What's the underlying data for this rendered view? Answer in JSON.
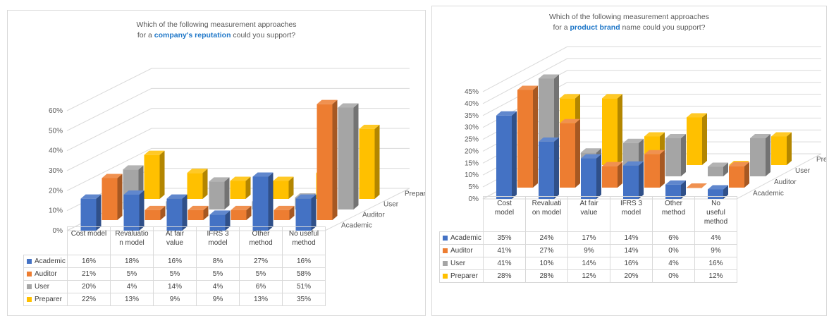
{
  "charts": [
    {
      "id": "left",
      "title_pre": "for a ",
      "title_bold": "company's reputation",
      "title_post": " could you support?",
      "title_line1": "Which of the following measurement approaches",
      "yticks": [
        "0%",
        "10%",
        "20%",
        "30%",
        "40%",
        "50%",
        "60%"
      ],
      "categories": [
        "Cost model",
        "Revaluation model",
        "At fair value",
        "IFRS 3 model",
        "Other method",
        "No useful method"
      ],
      "category_lines": [
        [
          "Cost model"
        ],
        [
          "Revaluatio",
          "n model"
        ],
        [
          "At fair",
          "value"
        ],
        [
          "IFRS 3",
          "model"
        ],
        [
          "Other",
          "method"
        ],
        [
          "No useful",
          "method"
        ]
      ],
      "series": [
        {
          "name": "Academic",
          "color": "#4472c4",
          "values": [
            16,
            18,
            16,
            8,
            27,
            16
          ]
        },
        {
          "name": "Auditor",
          "color": "#ed7d31",
          "values": [
            21,
            5,
            5,
            5,
            5,
            58
          ]
        },
        {
          "name": "User",
          "color": "#a5a5a5",
          "values": [
            20,
            4,
            14,
            4,
            6,
            51
          ]
        },
        {
          "name": "Preparer",
          "color": "#ffc000",
          "values": [
            22,
            13,
            9,
            9,
            13,
            35
          ]
        }
      ],
      "cells": [
        [
          "16%",
          "18%",
          "16%",
          "8%",
          "27%",
          "16%"
        ],
        [
          "21%",
          "5%",
          "5%",
          "5%",
          "5%",
          "58%"
        ],
        [
          "20%",
          "4%",
          "14%",
          "4%",
          "6%",
          "51%"
        ],
        [
          "22%",
          "13%",
          "9%",
          "9%",
          "13%",
          "35%"
        ]
      ],
      "ymax": 60
    },
    {
      "id": "right",
      "title_line1": "Which of the following measurement approaches",
      "title_pre": "for a ",
      "title_bold": "product brand",
      "title_post": " name could you support?",
      "yticks": [
        "0%",
        "5%",
        "10%",
        "15%",
        "20%",
        "25%",
        "30%",
        "35%",
        "40%",
        "45%"
      ],
      "categories": [
        "Cost model",
        "Revaluation model",
        "At fair value",
        "IFRS 3 model",
        "Other method",
        "No useful method"
      ],
      "category_lines": [
        [
          "Cost",
          "model"
        ],
        [
          "Revaluati",
          "on model"
        ],
        [
          "At fair",
          "value"
        ],
        [
          "IFRS 3",
          "model"
        ],
        [
          "Other",
          "method"
        ],
        [
          "No",
          "useful",
          "method"
        ]
      ],
      "series": [
        {
          "name": "Academic",
          "color": "#4472c4",
          "values": [
            35,
            24,
            17,
            14,
            6,
            4
          ]
        },
        {
          "name": "Auditor",
          "color": "#ed7d31",
          "values": [
            41,
            27,
            9,
            14,
            0,
            9
          ]
        },
        {
          "name": "User",
          "color": "#a5a5a5",
          "values": [
            41,
            10,
            14,
            16,
            4,
            16
          ]
        },
        {
          "name": "Preparer",
          "color": "#ffc000",
          "values": [
            28,
            28,
            12,
            20,
            0,
            12
          ]
        }
      ],
      "cells": [
        [
          "35%",
          "24%",
          "17%",
          "14%",
          "6%",
          "4%"
        ],
        [
          "41%",
          "27%",
          "9%",
          "14%",
          "0%",
          "9%"
        ],
        [
          "41%",
          "10%",
          "14%",
          "16%",
          "4%",
          "16%"
        ],
        [
          "28%",
          "28%",
          "12%",
          "20%",
          "0%",
          "12%"
        ]
      ],
      "ymax": 45
    }
  ],
  "chart_data": [
    {
      "type": "bar",
      "title": "Which of the following measurement approaches for a company's reputation could you support?",
      "categories": [
        "Cost model",
        "Revaluation model",
        "At fair value",
        "IFRS 3 model",
        "Other method",
        "No useful method"
      ],
      "series": [
        {
          "name": "Academic",
          "values": [
            16,
            18,
            16,
            8,
            27,
            16
          ]
        },
        {
          "name": "Auditor",
          "values": [
            21,
            5,
            5,
            5,
            5,
            58
          ]
        },
        {
          "name": "User",
          "values": [
            20,
            4,
            14,
            4,
            6,
            51
          ]
        },
        {
          "name": "Preparer",
          "values": [
            22,
            13,
            9,
            9,
            13,
            35
          ]
        }
      ],
      "ylim": [
        0,
        60
      ],
      "legend": "data-table",
      "grid": true
    },
    {
      "type": "bar",
      "title": "Which of the following measurement approaches for a product brand name could you support?",
      "categories": [
        "Cost model",
        "Revaluation model",
        "At fair value",
        "IFRS 3 model",
        "Other method",
        "No useful method"
      ],
      "series": [
        {
          "name": "Academic",
          "values": [
            35,
            24,
            17,
            14,
            6,
            4
          ]
        },
        {
          "name": "Auditor",
          "values": [
            41,
            27,
            9,
            14,
            0,
            9
          ]
        },
        {
          "name": "User",
          "values": [
            41,
            10,
            14,
            16,
            4,
            16
          ]
        },
        {
          "name": "Preparer",
          "values": [
            28,
            28,
            12,
            20,
            0,
            12
          ]
        }
      ],
      "ylim": [
        0,
        45
      ],
      "legend": "data-table",
      "grid": true
    }
  ]
}
